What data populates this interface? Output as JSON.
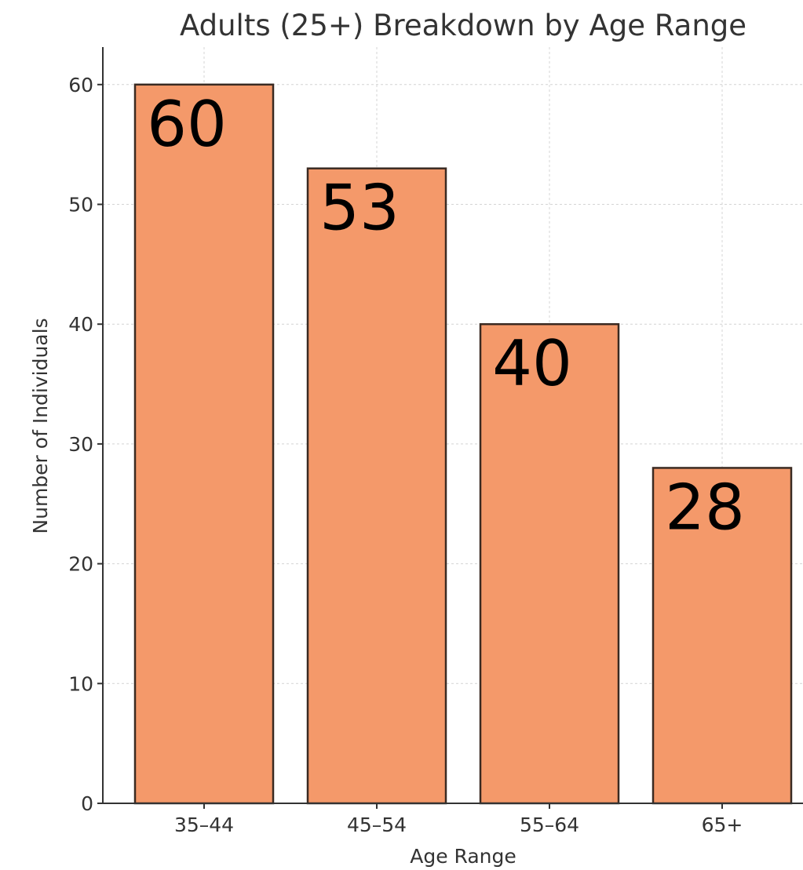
{
  "chart_data": {
    "type": "bar",
    "title": "Adults (25+) Breakdown by Age Range",
    "xlabel": "Age Range",
    "ylabel": "Number of Individuals",
    "categories": [
      "35–44",
      "45–54",
      "55–64",
      "65+"
    ],
    "values": [
      60,
      53,
      40,
      28
    ],
    "data_labels": [
      "60",
      "53",
      "40",
      "28"
    ],
    "ylim": [
      0,
      63
    ],
    "yticks": [
      0,
      10,
      20,
      30,
      40,
      50,
      60
    ],
    "grid": true,
    "bar_color": "#f4996a",
    "bar_edge_color": "#3a2a22"
  }
}
